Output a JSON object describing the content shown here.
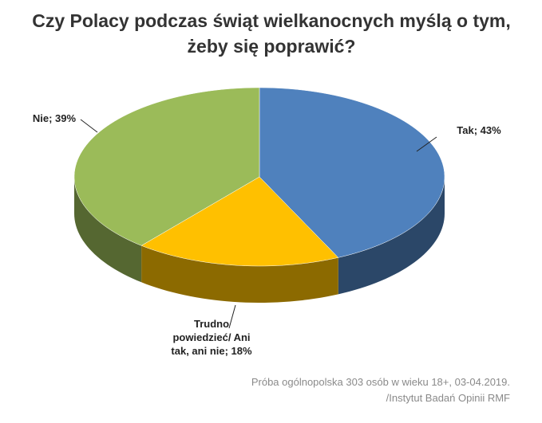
{
  "chart_data": {
    "type": "pie3d",
    "title": "Czy Polacy podczas świąt wielkanocnych myślą o tym, żeby się poprawić?",
    "categories": [
      "Tak",
      "Trudno powiedzieć/ Ani tak, ani nie",
      "Nie"
    ],
    "values": [
      43,
      18,
      39
    ],
    "value_labels": [
      "Tak; 43%",
      "Trudno powiedzieć/ Ani tak, ani nie; 18%",
      "Nie; 39%"
    ],
    "colors": [
      "#4f81bd",
      "#ffc000",
      "#9bbb59"
    ],
    "note": [
      "Próba ogólnopolska 303 osób w wieku 18+, 03-04.2019.",
      "/Instytut Badań Opinii RMF"
    ]
  }
}
